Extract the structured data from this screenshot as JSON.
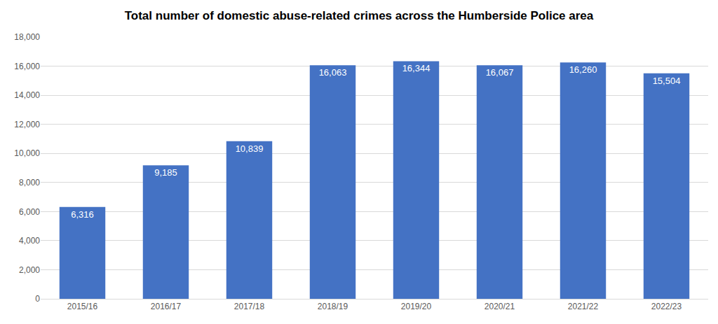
{
  "chart_data": {
    "type": "bar",
    "title": "Total number of domestic abuse-related crimes across the Humberside Police area",
    "categories": [
      "2015/16",
      "2016/17",
      "2017/18",
      "2018/19",
      "2019/20",
      "2020/21",
      "2021/22",
      "2022/23"
    ],
    "values": [
      6316,
      9185,
      10839,
      16063,
      16344,
      16067,
      16260,
      15504
    ],
    "value_labels": [
      "6,316",
      "9,185",
      "10,839",
      "16,063",
      "16,344",
      "16,067",
      "16,260",
      "15,504"
    ],
    "color": "#4472c4",
    "ylim": [
      0,
      18000
    ],
    "yticks": [
      0,
      {
        "value": 2000,
        "label": "2,000"
      },
      {
        "value": 4000,
        "label": "4,000"
      },
      {
        "value": 6000,
        "label": "6,000"
      },
      {
        "value": 8000,
        "label": "8,000"
      },
      {
        "value": 10000,
        "label": "10,000"
      },
      {
        "value": 12000,
        "label": "12,000"
      },
      {
        "value": 14000,
        "label": "14,000"
      },
      {
        "value": 16000,
        "label": "16,000"
      },
      {
        "value": 18000,
        "label": "18,000"
      }
    ],
    "grid": true,
    "data_labels": true
  }
}
